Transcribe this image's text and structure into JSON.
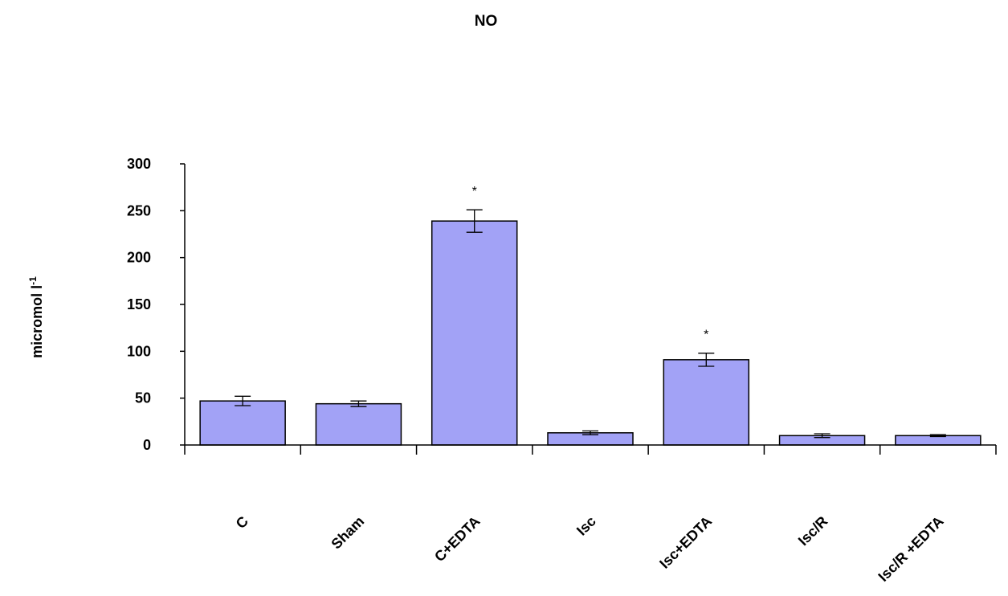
{
  "chart_data": {
    "type": "bar",
    "title": "NO",
    "xlabel": "",
    "ylabel": "micromol l",
    "ylabel_superscript": "-1",
    "ylim": [
      0,
      300
    ],
    "yticks": [
      0,
      50,
      100,
      150,
      200,
      250,
      300
    ],
    "grid": false,
    "legend": "none",
    "categories": [
      "C",
      "Sham",
      "C+EDTA",
      "Isc",
      "Isc+EDTA",
      "Isc/R",
      "Isc/R +EDTA"
    ],
    "values": [
      47,
      44,
      239,
      13,
      91,
      10,
      10
    ],
    "errors": [
      5,
      3,
      12,
      2,
      7,
      2,
      1
    ],
    "annotations": [
      "",
      "",
      "*",
      "",
      "*",
      "",
      ""
    ],
    "colors": {
      "bar_fill": "#a2a2f6",
      "bar_stroke": "#000000",
      "axis": "#000000"
    }
  }
}
